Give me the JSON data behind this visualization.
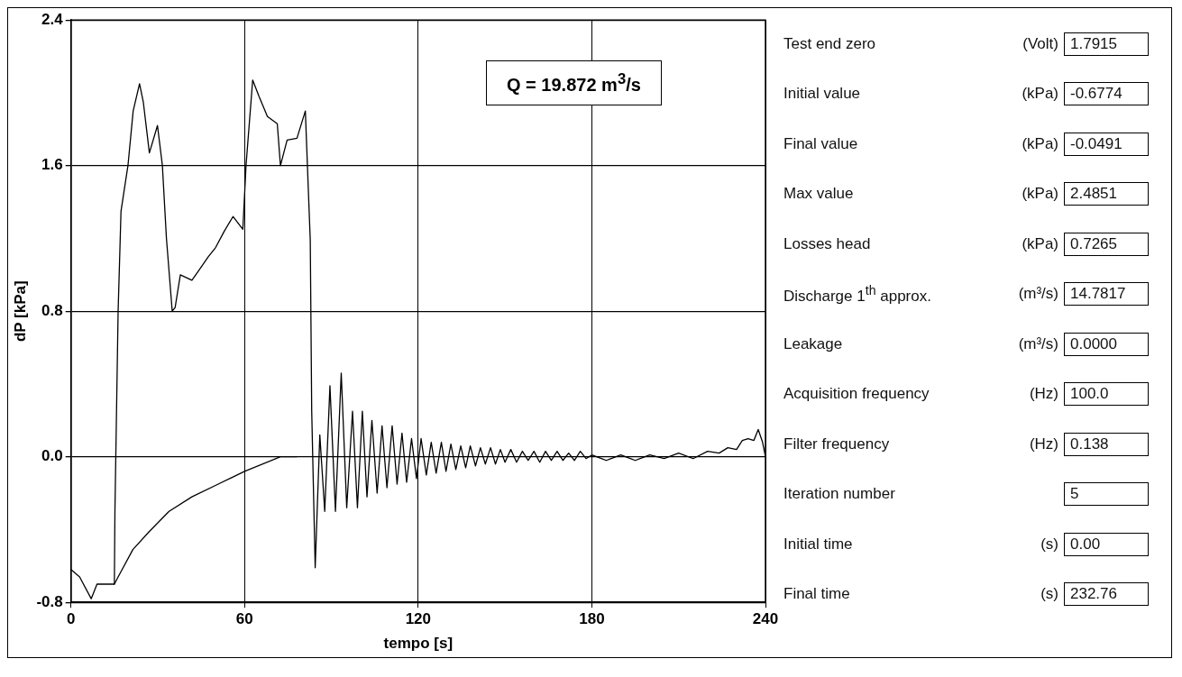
{
  "chart_data": [
    {
      "type": "line",
      "xlabel": "tempo [s]",
      "ylabel": "dP [kPa]",
      "xlim": [
        0,
        240
      ],
      "xticks": [
        0,
        60,
        120,
        180,
        240
      ],
      "ylim": [
        -0.8,
        2.4
      ],
      "yticks": [
        {
          "value": -0.8,
          "label": "-0.8"
        },
        {
          "value": 0,
          "label": "0.0"
        },
        {
          "value": 0.8,
          "label": "0.8"
        },
        {
          "value": 1.6,
          "label": "1.6"
        },
        {
          "value": 2.4,
          "label": "2.4"
        }
      ],
      "grid": true,
      "legend": false,
      "marker": "none",
      "line_style": "solid",
      "annotations": [
        "Q = 19.872 m$^{3}$/s"
      ],
      "series": [
        {
          "color": "#000000",
          "x": [
            0,
            3,
            7,
            9,
            15,
            15.2,
            16.3,
            17.3,
            19.7,
            21.5,
            23.7,
            25,
            27.1,
            29.9,
            31.6,
            33,
            35,
            36,
            37.8,
            41.8,
            44,
            47.5,
            50,
            53,
            56,
            59.4,
            60.5,
            62.8,
            65,
            67.9,
            71.3,
            72.4,
            74.7,
            78.1,
            81,
            82.7,
            83.2,
            84.4,
            86,
            87.7,
            89.5,
            91.4,
            93.4,
            95.3,
            97.3,
            99,
            100.7,
            102.3,
            104,
            105.8,
            107.5,
            109.2,
            111,
            112.7,
            114.4,
            116,
            117.7,
            119.4,
            121,
            122.8,
            124.5,
            126.2,
            128,
            129.6,
            131.3,
            133,
            134.7,
            136.4,
            138,
            139.8,
            141.5,
            143.2,
            145,
            146.7,
            148.4,
            150,
            152,
            154,
            156,
            158,
            160,
            162,
            164,
            166,
            168,
            170,
            172,
            174,
            176,
            178,
            180,
            185,
            190,
            195,
            200,
            205,
            210,
            215,
            220,
            224,
            227,
            230,
            232,
            234,
            236,
            237.5,
            239,
            240
          ],
          "values": [
            -0.62,
            -0.66,
            -0.78,
            -0.7,
            -0.7,
            -0.3,
            0.8,
            1.35,
            1.6,
            1.9,
            2.05,
            1.95,
            1.67,
            1.82,
            1.6,
            1.2,
            0.8,
            0.82,
            1.0,
            0.97,
            1.02,
            1.1,
            1.15,
            1.24,
            1.32,
            1.25,
            1.6,
            2.07,
            1.98,
            1.87,
            1.83,
            1.6,
            1.74,
            1.75,
            1.9,
            1.19,
            0.25,
            -0.61,
            0.12,
            -0.3,
            0.39,
            -0.3,
            0.46,
            -0.28,
            0.25,
            -0.28,
            0.25,
            -0.22,
            0.2,
            -0.2,
            0.17,
            -0.17,
            0.17,
            -0.15,
            0.13,
            -0.14,
            0.1,
            -0.12,
            0.1,
            -0.1,
            0.08,
            -0.09,
            0.08,
            -0.08,
            0.07,
            -0.07,
            0.06,
            -0.06,
            0.06,
            -0.05,
            0.05,
            -0.04,
            0.05,
            -0.04,
            0.04,
            -0.03,
            0.04,
            -0.03,
            0.03,
            -0.02,
            0.03,
            -0.03,
            0.03,
            -0.02,
            0.03,
            -0.02,
            0.02,
            -0.02,
            0.03,
            -0.01,
            0.01,
            -0.02,
            0.01,
            -0.02,
            0.01,
            -0.01,
            0.02,
            -0.01,
            0.03,
            0.02,
            0.05,
            0.04,
            0.09,
            0.1,
            0.09,
            0.15,
            0.08,
            0
          ]
        },
        {
          "color": "#000000",
          "x": [
            15,
            16.3,
            21.4,
            27.1,
            33.9,
            41.8,
            50.9,
            60,
            72.4,
            78
          ],
          "values": [
            -0.7,
            -0.66,
            -0.51,
            -0.41,
            -0.3,
            -0.22,
            -0.15,
            -0.08,
            0,
            0
          ]
        }
      ]
    },
    {
      "type": "other",
      "annotations": [
        "Test end zero",
        "(Volt)",
        "1.7915",
        "Initial value",
        "(kPa)",
        "-0.6774",
        "Final value",
        "(kPa)",
        "-0.0491",
        "Max value",
        "(kPa)",
        "2.4851",
        "Losses head",
        "(kPa)",
        "0.7265",
        "Discharge 1$^{th}$ approx.",
        "(m³/s)",
        "14.7817",
        "Leakage",
        "(m³/s)",
        "0.0000",
        "Acquisition frequency",
        "(Hz)",
        "100.0",
        "Filter frequency",
        "(Hz)",
        "0.138",
        "Iteration number",
        null,
        "5",
        "Initial time",
        "(s)",
        "0.00",
        "Final time",
        "(s)",
        "232.76"
      ]
    }
  ]
}
